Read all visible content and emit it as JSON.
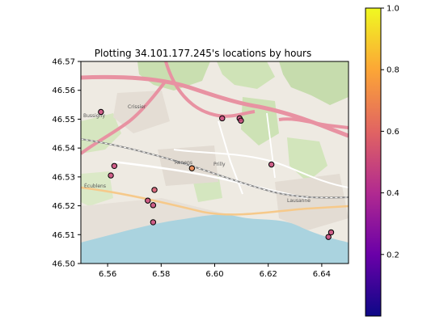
{
  "chart_data": {
    "type": "scatter",
    "title": "Plotting 34.101.177.245's locations by hours",
    "xlabel": "",
    "ylabel": "",
    "xlim": [
      6.55,
      6.65
    ],
    "ylim": [
      46.5,
      46.57
    ],
    "x_ticks": [
      "6.56",
      "6.58",
      "6.60",
      "6.62",
      "6.64"
    ],
    "x_tick_values": [
      6.56,
      6.58,
      6.6,
      6.62,
      6.64
    ],
    "y_ticks": [
      "46.50",
      "46.51",
      "46.52",
      "46.53",
      "46.54",
      "46.55",
      "46.56",
      "46.57"
    ],
    "y_tick_values": [
      46.5,
      46.51,
      46.52,
      46.53,
      46.54,
      46.55,
      46.56,
      46.57
    ],
    "grid": false,
    "background": "map tile (Lausanne / Renens area, Lake Geneva)",
    "colormap": "plasma",
    "colorbar": {
      "range": [
        0,
        1
      ],
      "ticks": [
        "0.2",
        "0.4",
        "0.6",
        "0.8",
        "1.0"
      ],
      "tick_values": [
        0.2,
        0.4,
        0.6,
        0.8,
        1.0
      ]
    },
    "map_labels": [
      "Crissier",
      "Renens",
      "Prilly",
      "Écublens",
      "Lausanne",
      "Bussigny"
    ],
    "points": [
      {
        "x": 6.5575,
        "y": 46.5525,
        "v": 0.5
      },
      {
        "x": 6.5625,
        "y": 46.5338,
        "v": 0.5
      },
      {
        "x": 6.5612,
        "y": 46.5305,
        "v": 0.5
      },
      {
        "x": 6.5775,
        "y": 46.5255,
        "v": 0.55
      },
      {
        "x": 6.575,
        "y": 46.5218,
        "v": 0.5
      },
      {
        "x": 6.577,
        "y": 46.5202,
        "v": 0.5
      },
      {
        "x": 6.577,
        "y": 46.5143,
        "v": 0.5
      },
      {
        "x": 6.5915,
        "y": 46.533,
        "v": 0.7
      },
      {
        "x": 6.6028,
        "y": 46.5503,
        "v": 0.5
      },
      {
        "x": 6.6093,
        "y": 46.5503,
        "v": 0.5
      },
      {
        "x": 6.6098,
        "y": 46.5495,
        "v": 0.5
      },
      {
        "x": 6.6212,
        "y": 46.5343,
        "v": 0.5
      },
      {
        "x": 6.6435,
        "y": 46.5108,
        "v": 0.5
      },
      {
        "x": 6.6425,
        "y": 46.5092,
        "v": 0.5
      }
    ]
  }
}
